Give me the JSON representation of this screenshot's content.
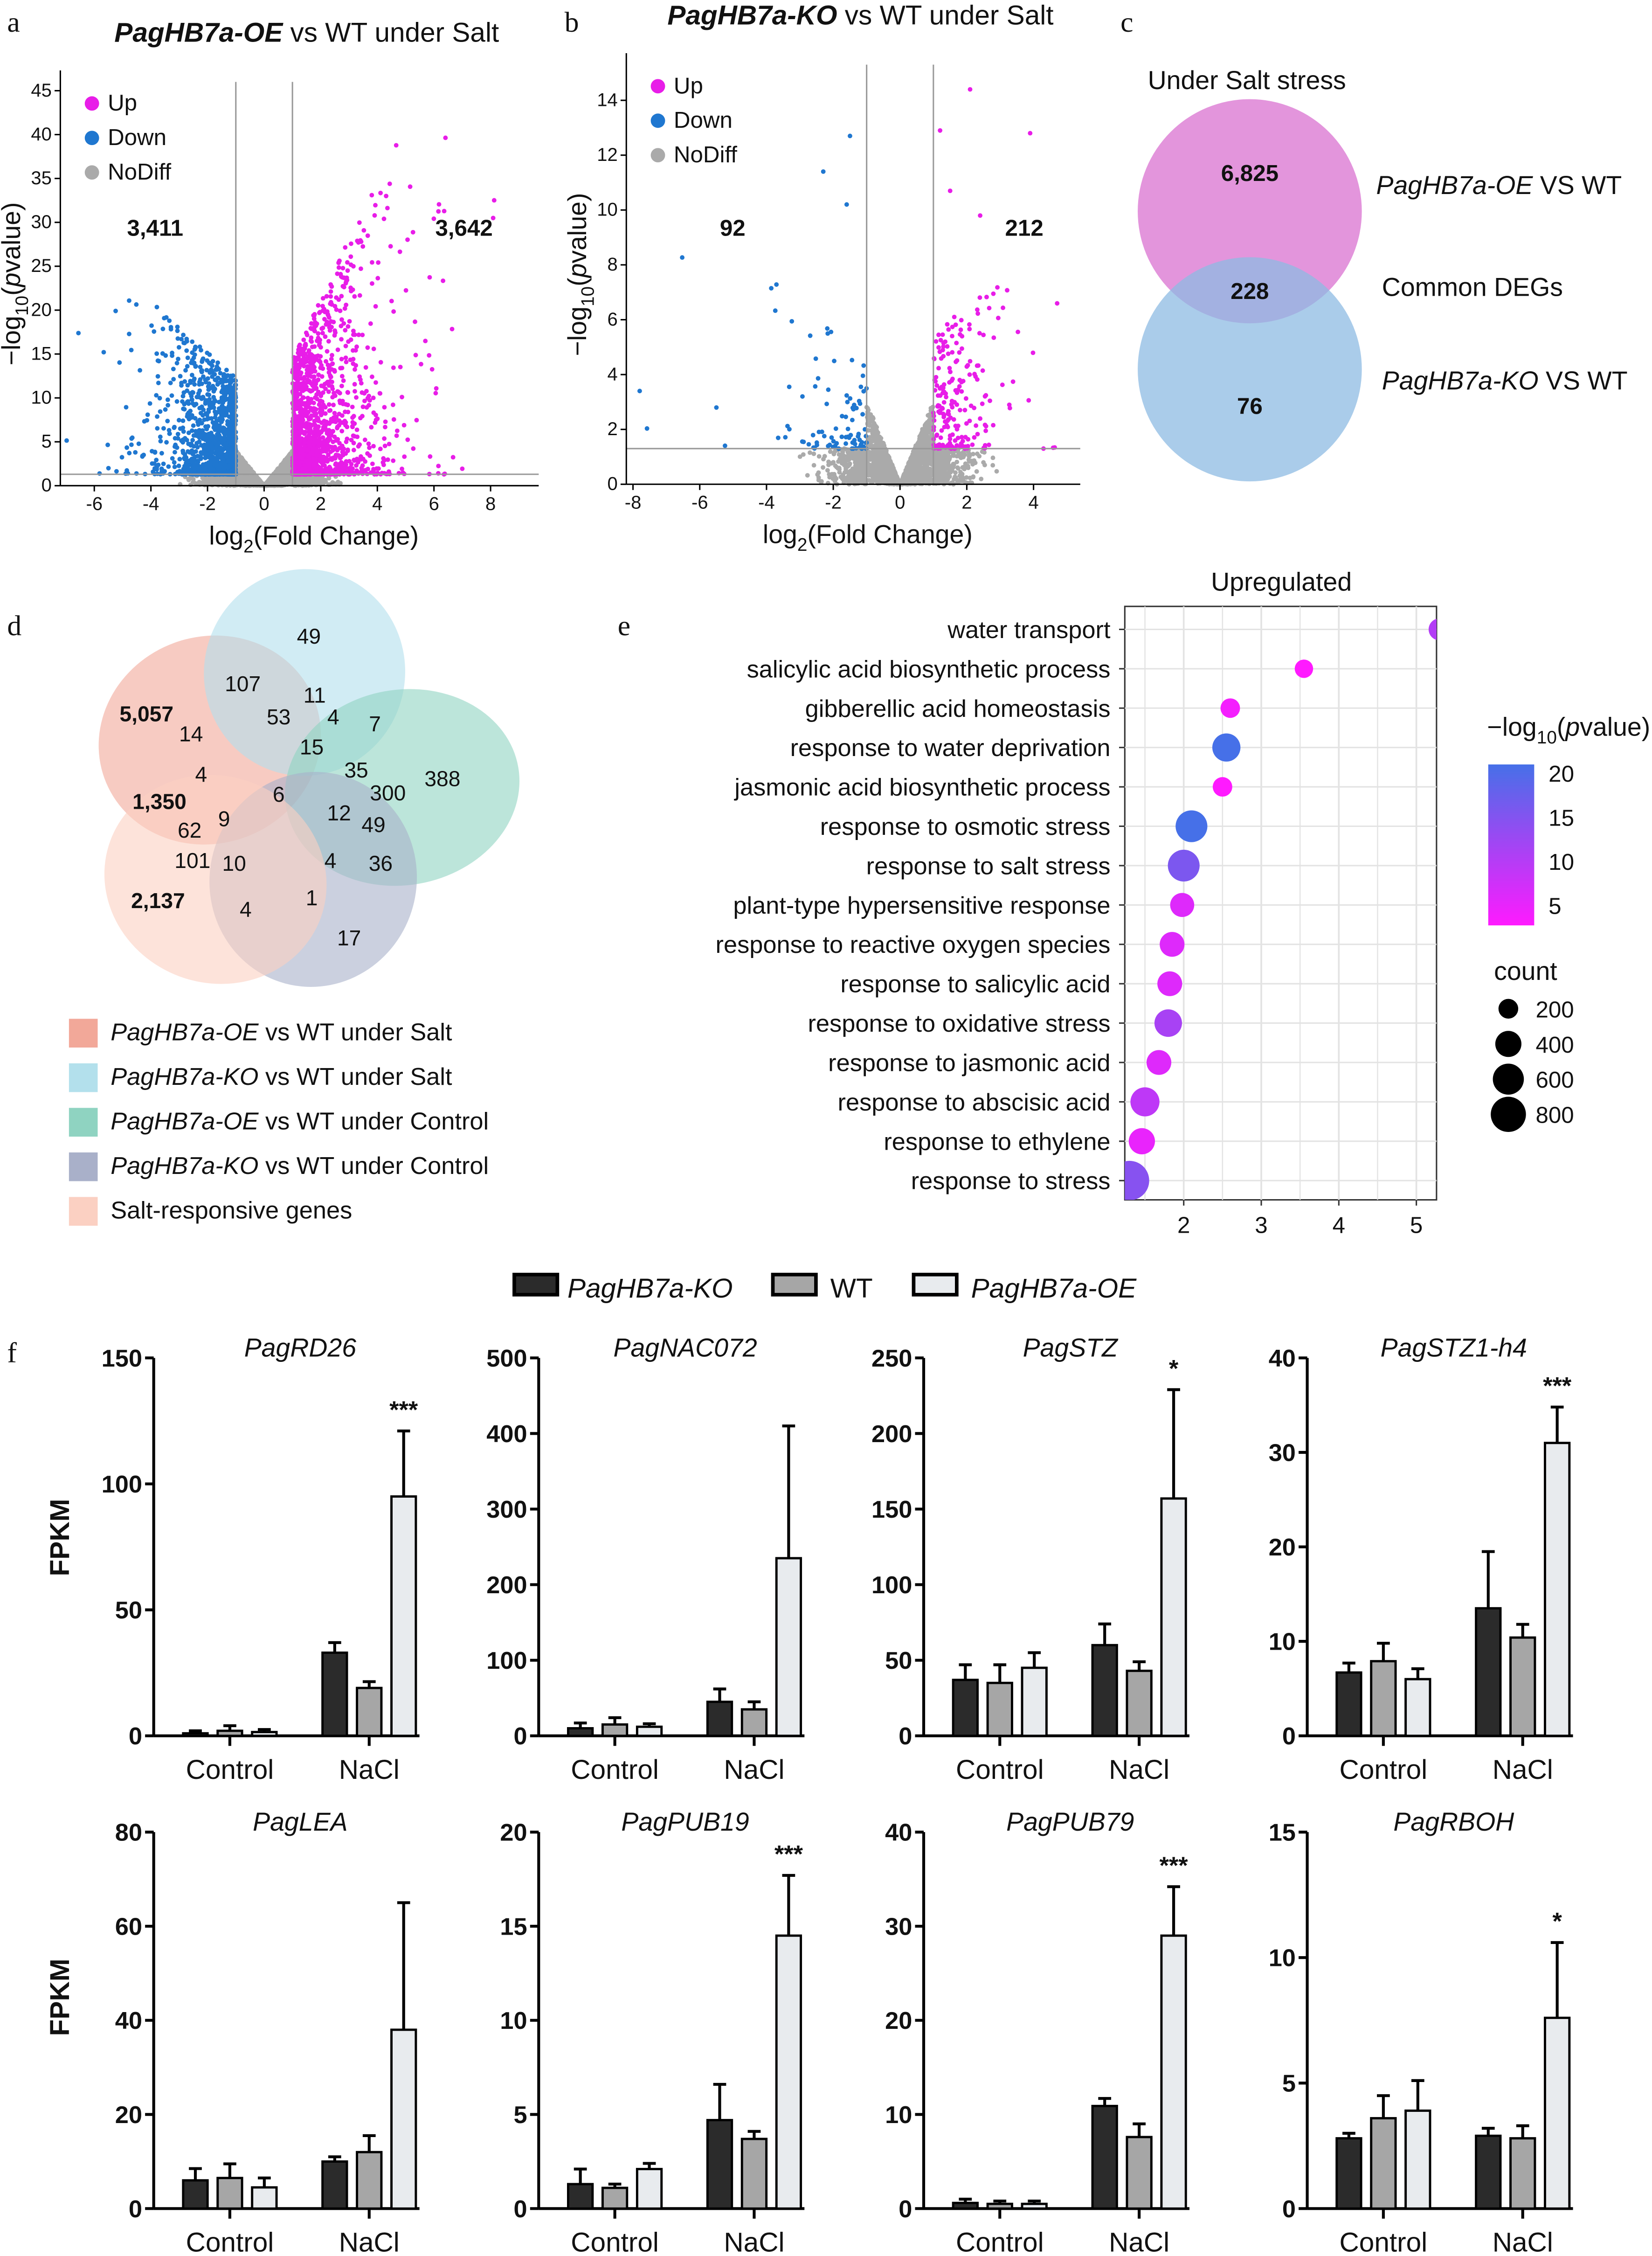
{
  "panel_labels": {
    "a": "a",
    "b": "b",
    "c": "c",
    "d": "d",
    "e": "e",
    "f": "f"
  },
  "chart_data": [
    {
      "panel": "a",
      "type": "scatter",
      "title_italic": "PagHB7a-OE",
      "title_rest": " vs WT under Salt",
      "xlabel": {
        "pre": "log",
        "sub": "2",
        "post": "(Fold Change)"
      },
      "ylabel": {
        "pre": "−log",
        "sub": "10",
        "open": "(",
        "italic": "p",
        "post": "value)"
      },
      "xlim": [
        -7.2,
        9.7
      ],
      "ylim": [
        0,
        46
      ],
      "xticks": [
        -6,
        -4,
        -2,
        0,
        2,
        4,
        6,
        8
      ],
      "yticks": [
        0,
        5,
        10,
        15,
        20,
        25,
        30,
        35,
        40,
        45
      ],
      "thresholds": {
        "log2fc": [
          -1,
          1
        ],
        "neg_log10_p": 1.3
      },
      "legend": [
        {
          "name": "Up",
          "color": "#e81de8"
        },
        {
          "name": "Down",
          "color": "#1f77d0"
        },
        {
          "name": "NoDiff",
          "color": "#aaaaaa"
        }
      ],
      "counts": {
        "down": "3,411",
        "up": "3,642"
      },
      "grid": false
    },
    {
      "panel": "b",
      "type": "scatter",
      "title_italic": "PagHB7a-KO",
      "title_rest": " vs WT under Salt",
      "xlabel": {
        "pre": "log",
        "sub": "2",
        "post": "(Fold Change)"
      },
      "ylabel": {
        "pre": "−log",
        "sub": "10",
        "open": "(",
        "italic": "p",
        "post": "value)"
      },
      "xlim": [
        -8.2,
        5.4
      ],
      "ylim": [
        0,
        15.3
      ],
      "xticks": [
        -8,
        -6,
        -4,
        -2,
        0,
        2,
        4
      ],
      "yticks": [
        0,
        2,
        4,
        6,
        8,
        10,
        12,
        14
      ],
      "thresholds": {
        "log2fc": [
          -1,
          1
        ],
        "neg_log10_p": 1.3
      },
      "legend": [
        {
          "name": "Up",
          "color": "#e81de8"
        },
        {
          "name": "Down",
          "color": "#1f77d0"
        },
        {
          "name": "NoDiff",
          "color": "#aaaaaa"
        }
      ],
      "counts": {
        "down": "92",
        "up": "212"
      },
      "grid": false
    },
    {
      "panel": "c",
      "type": "venn",
      "title": "Under Salt  stress",
      "sets": [
        {
          "name_italic": "PagHB7a-OE",
          "name_rest": " VS WT",
          "only": "6,825",
          "color": "#e08ad8"
        },
        {
          "name_italic": "PagHB7a-KO",
          "name_rest": " VS WT",
          "only": "76",
          "color": "#8dbbe3"
        }
      ],
      "intersection": {
        "label": "Common DEGs",
        "value": "228"
      }
    },
    {
      "panel": "d",
      "type": "venn",
      "sets": [
        {
          "name_italic": "PagHB7a-OE",
          "name_rest": " vs WT under Salt",
          "color": "#f2a899"
        },
        {
          "name_italic": "PagHB7a-KO",
          "name_rest": " vs WT under Salt",
          "color": "#b3e0ec"
        },
        {
          "name_italic": "PagHB7a-OE",
          "name_rest": " vs WT under Control",
          "color": "#8fd3c1"
        },
        {
          "name_italic": "PagHB7a-KO",
          "name_rest": " vs WT under Control",
          "color": "#a9b0c9"
        },
        {
          "name_italic": "",
          "name_rest": "Salt-responsive genes",
          "color": "#fbd0c2"
        }
      ],
      "regions": [
        "49",
        "107",
        "11",
        "5,057",
        "53",
        "4",
        "7",
        "14",
        "15",
        "35",
        "388",
        "4",
        "300",
        "6",
        "1,350",
        "9",
        "12",
        "49",
        "62",
        "101",
        "10",
        "4",
        "36",
        "2,137",
        "4",
        "1",
        "17"
      ]
    },
    {
      "panel": "e",
      "type": "scatter",
      "title": "Upregulated",
      "xlim": [
        1.24,
        5.26
      ],
      "xticks": [
        2,
        3,
        4,
        5
      ],
      "grid": true,
      "terms": [
        {
          "label": "water transport",
          "x": 5.3,
          "neg_log10_p": 10,
          "count": 150,
          "highlight": false
        },
        {
          "label": "salicylic acid biosynthetic process",
          "x": 3.55,
          "neg_log10_p": 3,
          "count": 80,
          "highlight": false
        },
        {
          "label": "gibberellic acid homeostasis",
          "x": 2.6,
          "neg_log10_p": 4,
          "count": 100,
          "highlight": false
        },
        {
          "label": "response to water deprivation",
          "x": 2.55,
          "neg_log10_p": 20,
          "count": 320,
          "highlight": false
        },
        {
          "label": "jasmonic acid biosynthetic process",
          "x": 2.5,
          "neg_log10_p": 3,
          "count": 100,
          "highlight": false
        },
        {
          "label": "response to osmotic stress",
          "x": 2.1,
          "neg_log10_p": 20,
          "count": 450,
          "highlight": true
        },
        {
          "label": "response to salt stress",
          "x": 2.0,
          "neg_log10_p": 15,
          "count": 450,
          "highlight": true
        },
        {
          "label": "plant-type hypersensitive response",
          "x": 1.98,
          "neg_log10_p": 6,
          "count": 200,
          "highlight": false
        },
        {
          "label": "response to reactive oxygen species",
          "x": 1.85,
          "neg_log10_p": 6,
          "count": 220,
          "highlight": false
        },
        {
          "label": "response to salicylic acid",
          "x": 1.82,
          "neg_log10_p": 6,
          "count": 220,
          "highlight": false
        },
        {
          "label": "response to oxidative stress",
          "x": 1.8,
          "neg_log10_p": 11,
          "count": 300,
          "highlight": true
        },
        {
          "label": "response to jasmonic acid",
          "x": 1.68,
          "neg_log10_p": 6,
          "count": 220,
          "highlight": false
        },
        {
          "label": "response to abscisic acid",
          "x": 1.5,
          "neg_log10_p": 9,
          "count": 350,
          "highlight": true
        },
        {
          "label": "response to ethylene",
          "x": 1.46,
          "neg_log10_p": 5,
          "count": 260,
          "highlight": false
        },
        {
          "label": "response to stress",
          "x": 1.3,
          "neg_log10_p": 14,
          "count": 800,
          "highlight": false
        }
      ],
      "color_legend": {
        "title": {
          "pre": "−log",
          "sub": "10",
          "open": "(",
          "italic": "p",
          "post": "value)"
        },
        "ticks": [
          20,
          15,
          10,
          5
        ],
        "low_color": "#ff1aff",
        "high_color": "#4670e8"
      },
      "size_legend": {
        "title": "count",
        "values": [
          200,
          400,
          600,
          800
        ]
      },
      "highlight_color": "#ff0000"
    },
    {
      "panel": "f",
      "type": "bar",
      "ylabel": "FPKM",
      "categories": [
        "Control",
        "NaCl"
      ],
      "series": [
        {
          "name": "PagHB7a-KO",
          "italic": true,
          "color": "#2b2b2b"
        },
        {
          "name": "WT",
          "italic": false,
          "color": "#a6a6a6"
        },
        {
          "name": "PagHB7a-OE",
          "italic": true,
          "color": "#e8ebee"
        }
      ],
      "charts": [
        {
          "gene": "PagRD26",
          "ylim": [
            0,
            150
          ],
          "yticks": [
            0,
            50,
            100,
            150
          ],
          "values": [
            [
              1,
              2,
              1.5
            ],
            [
              33,
              19,
              95
            ]
          ],
          "errors": [
            [
              1,
              2,
              1
            ],
            [
              4,
              2.5,
              26
            ]
          ],
          "signif": [
            "",
            ""
          ],
          "signif_oe_nacl": "***"
        },
        {
          "gene": "PagNAC072",
          "ylim": [
            0,
            500
          ],
          "yticks": [
            0,
            100,
            200,
            300,
            400,
            500
          ],
          "values": [
            [
              10,
              15,
              12
            ],
            [
              45,
              35,
              235
            ]
          ],
          "errors": [
            [
              7,
              9,
              4
            ],
            [
              17,
              10,
              175
            ]
          ],
          "signif_oe_nacl": ""
        },
        {
          "gene": "PagSTZ",
          "ylim": [
            0,
            250
          ],
          "yticks": [
            0,
            50,
            100,
            150,
            200,
            250
          ],
          "values": [
            [
              37,
              35,
              45
            ],
            [
              60,
              43,
              157
            ]
          ],
          "errors": [
            [
              10,
              12,
              10
            ],
            [
              14,
              6,
              72
            ]
          ],
          "signif_oe_nacl": "*"
        },
        {
          "gene": "PagSTZ1-h4",
          "ylim": [
            0,
            40
          ],
          "yticks": [
            0,
            10,
            20,
            30,
            40
          ],
          "values": [
            [
              6.7,
              7.9,
              6
            ],
            [
              13.5,
              10.4,
              31
            ]
          ],
          "errors": [
            [
              1,
              1.9,
              1.1
            ],
            [
              6,
              1.4,
              3.8
            ]
          ],
          "signif_oe_nacl": "***"
        },
        {
          "gene": "PagLEA",
          "ylim": [
            0,
            80
          ],
          "yticks": [
            0,
            20,
            40,
            60,
            80
          ],
          "values": [
            [
              6,
              6.5,
              4.5
            ],
            [
              10,
              12,
              38
            ]
          ],
          "errors": [
            [
              2.5,
              3,
              2
            ],
            [
              1,
              3.5,
              27
            ]
          ],
          "signif_oe_nacl": ""
        },
        {
          "gene": "PagPUB19",
          "ylim": [
            0,
            20
          ],
          "yticks": [
            0,
            5,
            10,
            15,
            20
          ],
          "values": [
            [
              1.3,
              1.1,
              2.1
            ],
            [
              4.7,
              3.7,
              14.5
            ]
          ],
          "errors": [
            [
              0.8,
              0.2,
              0.3
            ],
            [
              1.9,
              0.4,
              3.2
            ]
          ],
          "signif_oe_nacl": "***"
        },
        {
          "gene": "PagPUB79",
          "ylim": [
            0,
            40
          ],
          "yticks": [
            0,
            10,
            20,
            30,
            40
          ],
          "values": [
            [
              0.6,
              0.5,
              0.5
            ],
            [
              10.9,
              7.6,
              29
            ]
          ],
          "errors": [
            [
              0.4,
              0.3,
              0.3
            ],
            [
              0.8,
              1.4,
              5.2
            ]
          ],
          "signif_oe_nacl": "***"
        },
        {
          "gene": "PagRBOH",
          "ylim": [
            0,
            15
          ],
          "yticks": [
            0,
            5,
            10,
            15
          ],
          "values": [
            [
              2.8,
              3.6,
              3.9
            ],
            [
              2.9,
              2.8,
              7.6
            ]
          ],
          "errors": [
            [
              0.2,
              0.9,
              1.2
            ],
            [
              0.3,
              0.5,
              3
            ]
          ],
          "signif_oe_nacl": "*"
        }
      ]
    }
  ]
}
